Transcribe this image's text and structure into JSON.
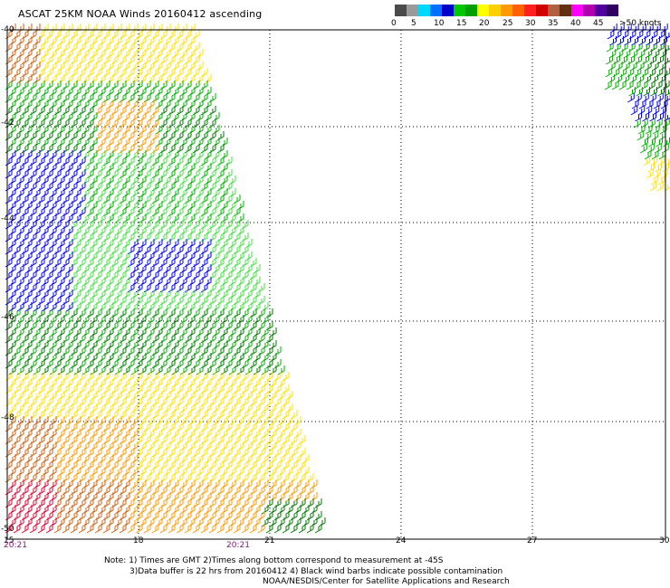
{
  "header": {
    "title": "ASCAT 25KM NOAA Winds 20160412 ascending"
  },
  "legend": {
    "colors": [
      "#4a4a4a",
      "#9a9a9a",
      "#00d8ff",
      "#0070ff",
      "#0000c8",
      "#00c800",
      "#00a000",
      "#ffff00",
      "#ffd000",
      "#ff9a00",
      "#ff6000",
      "#ff2020",
      "#d00000",
      "#b06040",
      "#603010",
      "#ff00ff",
      "#b000b0",
      "#5000a0",
      "#300060"
    ],
    "labels": [
      "0",
      "5",
      "10",
      "15",
      "20",
      "25",
      "30",
      "35",
      "40",
      "45",
      ">50 knots"
    ]
  },
  "axes": {
    "lat_labels": [
      "-40",
      "-42",
      "-44",
      "-46",
      "-48",
      "-50"
    ],
    "lon_labels": [
      "15",
      "18",
      "21",
      "24",
      "27",
      "30"
    ],
    "times": [
      "20:21",
      "20:21"
    ]
  },
  "notes": {
    "line1": "Note: 1) Times are GMT 2)Times along bottom correspond to measurement at -45S",
    "line2": "3)Data buffer is 22 hrs from 20160412 4) Black wind barbs indicate possible contamination",
    "line3": "NOAA/NESDIS/Center for Satellite Applications and Research"
  },
  "map_colors": {
    "blue": "#0000ff",
    "green_dark": "#007a00",
    "green": "#00b000",
    "green_light": "#40e040",
    "yellow": "#ffe000",
    "orange": "#ff9a00",
    "orange_dark": "#d06010",
    "red": "#e00030"
  }
}
